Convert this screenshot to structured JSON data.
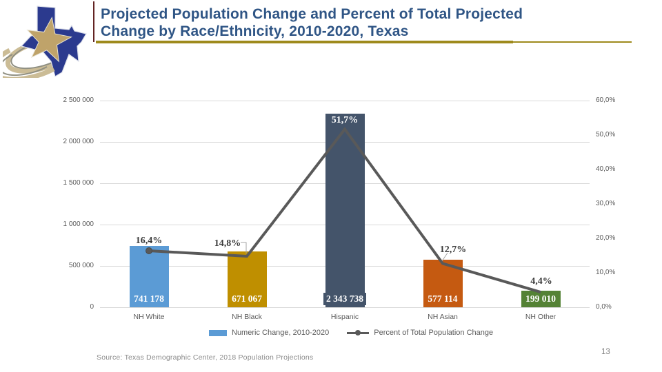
{
  "header": {
    "title_line1": "Projected Population Change and Percent of Total Projected",
    "title_line2": "Change by Race/Ethnicity, 2010-2020, Texas",
    "logo": "texas-demographic-center-logo"
  },
  "colors": {
    "title_blue": "#2F5585",
    "gold_rule": "#9E8A1C",
    "maroon_accent": "#632423",
    "gridline": "#D9D9D9",
    "axis_text": "#595959",
    "line_series": "#595959",
    "bar_nh_white": "#5B9BD5",
    "bar_nh_black": "#BF8F00",
    "bar_hispanic": "#44546A",
    "bar_nh_asian": "#C55A11",
    "bar_nh_other": "#548235"
  },
  "chart_data": {
    "type": "bar",
    "subtype": "combo bar + line, secondary percent axis",
    "categories": [
      "NH White",
      "NH Black",
      "Hispanic",
      "NH Asian",
      "NH Other"
    ],
    "series": [
      {
        "name": "Numeric Change, 2010-2020",
        "type": "bar",
        "values": [
          741178,
          671067,
          2343738,
          577114,
          199010
        ],
        "value_labels": [
          "741 178",
          "671 067",
          "2 343 738",
          "577 114",
          "199 010"
        ],
        "colors": [
          "#5B9BD5",
          "#BF8F00",
          "#44546A",
          "#C55A11",
          "#548235"
        ]
      },
      {
        "name": "Percent of Total Population Change",
        "type": "line",
        "values": [
          16.4,
          14.8,
          51.7,
          12.7,
          4.4
        ],
        "value_labels": [
          "16,4%",
          "14,8%",
          "51,7%",
          "12,7%",
          "4,4%"
        ],
        "color": "#595959"
      }
    ],
    "left_axis": {
      "ticks": [
        "2 500 000",
        "2 000 000",
        "1 500 000",
        "1 000 000",
        "500 000",
        "0"
      ],
      "min": 0,
      "max": 2500000
    },
    "right_axis": {
      "ticks": [
        "60,0%",
        "50,0%",
        "40,0%",
        "30,0%",
        "20,0%",
        "10,0%",
        "0,0%"
      ],
      "min": 0,
      "max": 60
    },
    "legend": [
      {
        "swatch": "bar",
        "label": "Numeric Change, 2010-2020"
      },
      {
        "swatch": "line",
        "label": "Percent of Total Population Change"
      }
    ],
    "grid": "horizontal light gray",
    "legend_position": "bottom"
  },
  "footer": {
    "source": "Source: Texas Demographic Center, 2018 Population Projections",
    "page_number": "13"
  }
}
